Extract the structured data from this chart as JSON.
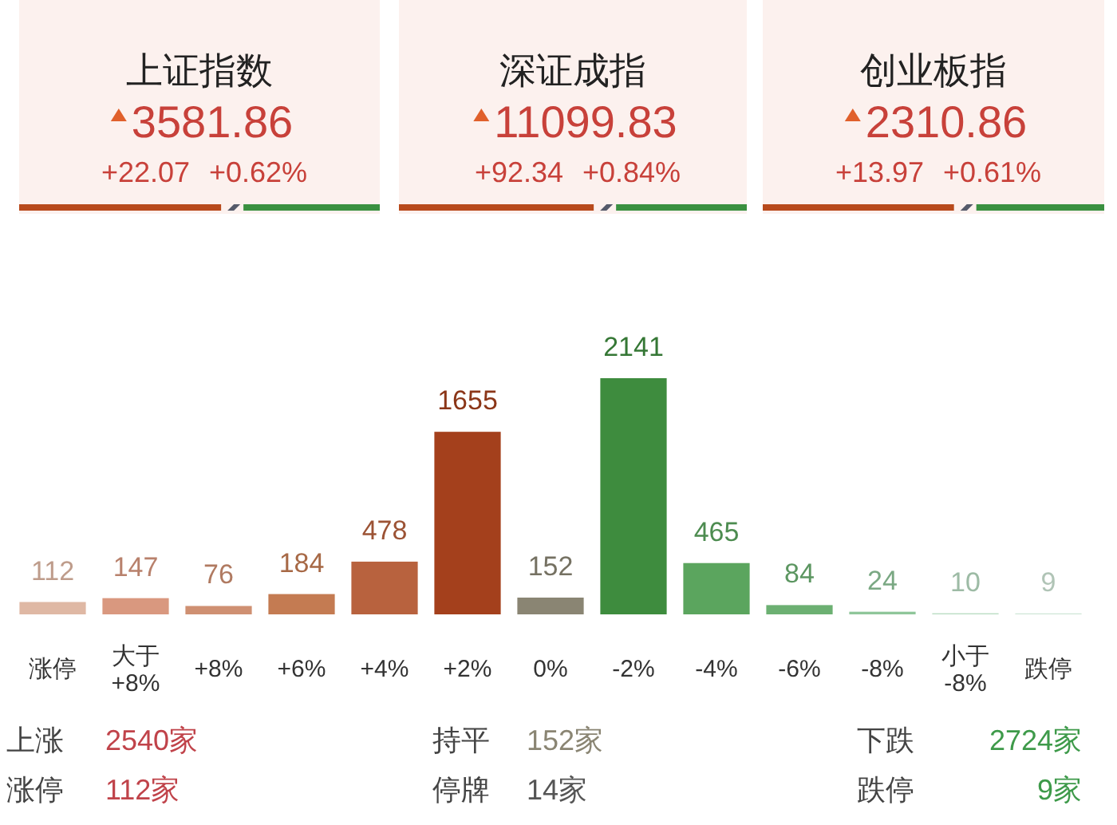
{
  "chart_data": [
    {
      "type": "other",
      "title": "上证指数",
      "annotations": [
        "3581.86",
        "+22.07",
        "+0.62%"
      ]
    },
    {
      "type": "other",
      "title": "深证成指",
      "annotations": [
        "11099.83",
        "+92.34",
        "+0.84%"
      ]
    },
    {
      "type": "other",
      "title": "创业板指",
      "annotations": [
        "2310.86",
        "+13.97",
        "+0.61%"
      ]
    },
    {
      "type": "bar",
      "categories": [
        "涨停",
        "大于\n+8%",
        "+8%",
        "+6%",
        "+4%",
        "+2%",
        "0%",
        "-2%",
        "-4%",
        "-6%",
        "-8%",
        "小于\n-8%",
        "跌停"
      ],
      "values": [
        112,
        147,
        76,
        184,
        478,
        1655,
        152,
        2141,
        465,
        84,
        24,
        10,
        9
      ],
      "colors": [
        "#dfb8a4",
        "#d9987f",
        "#cf9072",
        "#c47b52",
        "#b8623e",
        "#a4401c",
        "#8a8573",
        "#3e8c3e",
        "#5ba55e",
        "#6cb072",
        "#8fc69a",
        "#b9dcc2",
        "#cfe6d6"
      ],
      "data_labels": true
    },
    {
      "type": "other",
      "annotations": [
        "上涨",
        "2540家",
        "持平",
        "152家",
        "下跌",
        "2724家",
        "涨停",
        "112家",
        "停牌",
        "14家",
        "跌停",
        "9家"
      ],
      "colors": [
        "#444444",
        "#c0434a",
        "#444444",
        "#8a8573",
        "#444444",
        "#3e9a4a",
        "#444444",
        "#c0434a",
        "#444444",
        "#555555",
        "#444444",
        "#3e9a4a"
      ]
    }
  ]
}
